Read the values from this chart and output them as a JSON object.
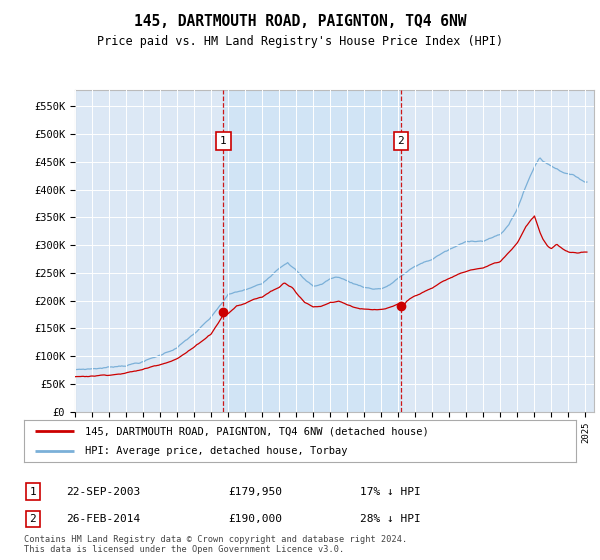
{
  "title": "145, DARTMOUTH ROAD, PAIGNTON, TQ4 6NW",
  "subtitle": "Price paid vs. HM Land Registry's House Price Index (HPI)",
  "ylabel_ticks": [
    "£0",
    "£50K",
    "£100K",
    "£150K",
    "£200K",
    "£250K",
    "£300K",
    "£350K",
    "£400K",
    "£450K",
    "£500K",
    "£550K"
  ],
  "ytick_values": [
    0,
    50000,
    100000,
    150000,
    200000,
    250000,
    300000,
    350000,
    400000,
    450000,
    500000,
    550000
  ],
  "ylim": [
    0,
    580000
  ],
  "hpi_color": "#7bb0d8",
  "price_color": "#cc0000",
  "background_color": "#dce8f5",
  "shade_color": "#d0e4f5",
  "marker1_date": 2003.72,
  "marker1_price": 179950,
  "marker2_date": 2014.15,
  "marker2_price": 190000,
  "legend_line1": "145, DARTMOUTH ROAD, PAIGNTON, TQ4 6NW (detached house)",
  "legend_line2": "HPI: Average price, detached house, Torbay",
  "footnote": "Contains HM Land Registry data © Crown copyright and database right 2024.\nThis data is licensed under the Open Government Licence v3.0."
}
